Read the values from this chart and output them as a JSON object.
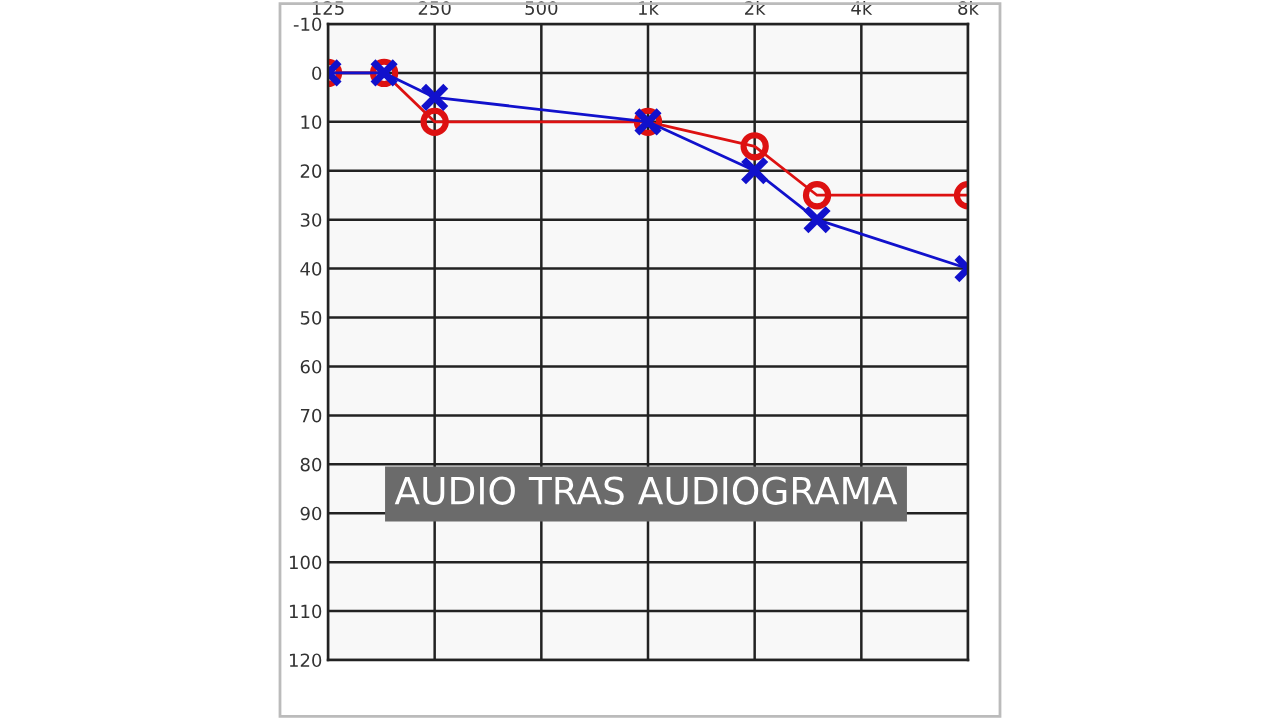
{
  "chart_data": {
    "type": "line",
    "log": "x",
    "x": [
      125,
      180,
      250,
      1000,
      2000,
      3000,
      8000
    ],
    "series": [
      {
        "color": "#dd1111",
        "marker": "circle",
        "values": [
          0,
          0,
          10,
          10,
          15,
          25,
          25
        ]
      },
      {
        "color": "#1111cc",
        "marker": "cross",
        "values": [
          0,
          0,
          5,
          10,
          20,
          30,
          40
        ]
      }
    ],
    "xlim": [
      125,
      8000
    ],
    "xticks": [
      125,
      250,
      500,
      {
        "value": 1000,
        "label": "1k"
      },
      {
        "value": 2000,
        "label": "2k"
      },
      {
        "value": 4000,
        "label": "4k"
      },
      {
        "value": 8000,
        "label": "8k"
      }
    ],
    "ylim": [
      120,
      -10
    ],
    "yticks": [
      -10,
      0,
      10,
      20,
      30,
      40,
      50,
      60,
      70,
      80,
      90,
      100,
      110,
      120
    ],
    "grid": true,
    "line_style": "solid",
    "annotations": [
      "AUDIO TRAS AUDIOGRAMA"
    ]
  }
}
